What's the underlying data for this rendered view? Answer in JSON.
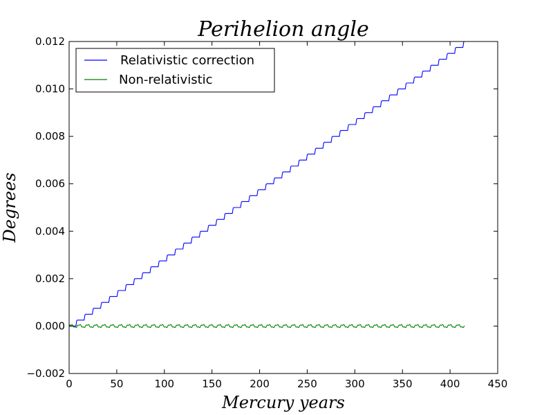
{
  "chart_data": {
    "type": "line",
    "title": "Perihelion angle",
    "xlabel": "Mercury years",
    "ylabel": "Degrees",
    "xlim": [
      0,
      450
    ],
    "ylim": [
      -0.002,
      0.012
    ],
    "x_ticks": [
      0,
      50,
      100,
      150,
      200,
      250,
      300,
      350,
      400,
      450
    ],
    "x_tick_labels": [
      "0",
      "50",
      "100",
      "150",
      "200",
      "250",
      "300",
      "350",
      "400",
      "450"
    ],
    "y_ticks": [
      -0.002,
      0,
      0.002,
      0.004,
      0.006,
      0.008,
      0.01,
      0.012
    ],
    "y_tick_labels": [
      "−0.002",
      "0.000",
      "0.002",
      "0.004",
      "0.006",
      "0.008",
      "0.010",
      "0.012"
    ],
    "grid": false,
    "legend_position": "upper-left",
    "series": [
      {
        "name": "Relativistic correction",
        "color": "#0000ff",
        "style": "staircase",
        "x_start": 0,
        "x_end": 415,
        "y_start": 0.0,
        "y_end": 0.012,
        "steps": 48
      },
      {
        "name": "Non-relativistic",
        "color": "#008000",
        "style": "oscillating",
        "x_start": 0,
        "x_end": 415,
        "y_center": 0.0,
        "y_amplitude": 7e-05,
        "cycles": 48
      }
    ]
  }
}
